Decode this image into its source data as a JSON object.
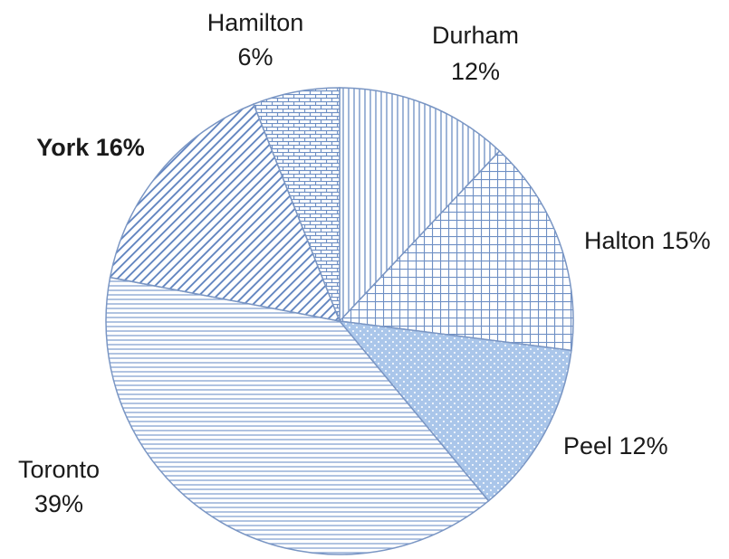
{
  "chart_data": {
    "type": "pie",
    "title": "",
    "start_angle_deg": -90,
    "direction": "clockwise",
    "border_color": "#7a96c4",
    "slices": [
      {
        "label": "Durham",
        "pct_text": "12%",
        "value": 12,
        "pattern": "vertical",
        "text": [
          "Durham",
          "12%"
        ],
        "bold": false
      },
      {
        "label": "Halton",
        "pct_text": "15%",
        "value": 15,
        "pattern": "grid",
        "text": [
          "Halton 15%"
        ],
        "bold": false
      },
      {
        "label": "Peel",
        "pct_text": "12%",
        "value": 12,
        "pattern": "dots",
        "text": [
          "Peel 12%"
        ],
        "bold": false
      },
      {
        "label": "Toronto",
        "pct_text": "39%",
        "value": 39,
        "pattern": "horizontal",
        "text": [
          "Toronto",
          "39%"
        ],
        "bold": false
      },
      {
        "label": "York",
        "pct_text": "16%",
        "value": 16,
        "pattern": "diagonal",
        "text": [
          "York 16%"
        ],
        "bold": true
      },
      {
        "label": "Hamilton",
        "pct_text": "6%",
        "value": 6,
        "pattern": "brick",
        "text": [
          "Hamilton",
          "6%"
        ],
        "bold": false
      }
    ]
  }
}
